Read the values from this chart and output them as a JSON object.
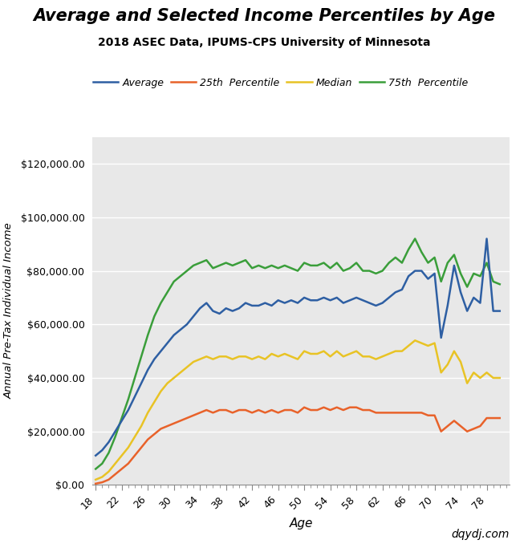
{
  "title": "Average and Selected Income Percentiles by Age",
  "subtitle": "2018 ASEC Data, IPUMS-CPS University of Minnesota",
  "xlabel": "Age",
  "ylabel": "Annual Pre-Tax Individual Income",
  "watermark": "dqydj.com",
  "fig_bg": "#ffffff",
  "plot_bg": "#e8e8e8",
  "line_colors": {
    "average": "#2e5fa3",
    "p25": "#e8622a",
    "median": "#e8c325",
    "p75": "#3a9e3a"
  },
  "legend_labels": [
    "Average",
    "25th  Percentile",
    "Median",
    "75th  Percentile"
  ],
  "ylim": [
    0,
    130000
  ],
  "yticks": [
    0,
    20000,
    40000,
    60000,
    80000,
    100000,
    120000
  ],
  "xticks": [
    18,
    22,
    26,
    30,
    34,
    38,
    42,
    46,
    50,
    54,
    58,
    62,
    66,
    70,
    74,
    78
  ],
  "ages": [
    18,
    19,
    20,
    21,
    22,
    23,
    24,
    25,
    26,
    27,
    28,
    29,
    30,
    31,
    32,
    33,
    34,
    35,
    36,
    37,
    38,
    39,
    40,
    41,
    42,
    43,
    44,
    45,
    46,
    47,
    48,
    49,
    50,
    51,
    52,
    53,
    54,
    55,
    56,
    57,
    58,
    59,
    60,
    61,
    62,
    63,
    64,
    65,
    66,
    67,
    68,
    69,
    70,
    71,
    72,
    73,
    74,
    75,
    76,
    77,
    78,
    79,
    80
  ],
  "average": [
    11000,
    13000,
    16000,
    20000,
    24000,
    28000,
    33000,
    38000,
    43000,
    47000,
    50000,
    53000,
    56000,
    58000,
    60000,
    63000,
    66000,
    68000,
    65000,
    64000,
    66000,
    65000,
    66000,
    68000,
    67000,
    67000,
    68000,
    67000,
    69000,
    68000,
    69000,
    68000,
    70000,
    69000,
    69000,
    70000,
    69000,
    70000,
    68000,
    69000,
    70000,
    69000,
    68000,
    67000,
    68000,
    70000,
    72000,
    73000,
    78000,
    80000,
    80000,
    77000,
    79000,
    55000,
    67000,
    82000,
    72000,
    65000,
    70000,
    68000,
    92000,
    65000,
    65000
  ],
  "p25": [
    500,
    1000,
    2000,
    4000,
    6000,
    8000,
    11000,
    14000,
    17000,
    19000,
    21000,
    22000,
    23000,
    24000,
    25000,
    26000,
    27000,
    28000,
    27000,
    28000,
    28000,
    27000,
    28000,
    28000,
    27000,
    28000,
    27000,
    28000,
    27000,
    28000,
    28000,
    27000,
    29000,
    28000,
    28000,
    29000,
    28000,
    29000,
    28000,
    29000,
    29000,
    28000,
    28000,
    27000,
    27000,
    27000,
    27000,
    27000,
    27000,
    27000,
    27000,
    26000,
    26000,
    20000,
    22000,
    24000,
    22000,
    20000,
    21000,
    22000,
    25000,
    25000,
    25000
  ],
  "median": [
    2000,
    3000,
    5000,
    8000,
    11000,
    14000,
    18000,
    22000,
    27000,
    31000,
    35000,
    38000,
    40000,
    42000,
    44000,
    46000,
    47000,
    48000,
    47000,
    48000,
    48000,
    47000,
    48000,
    48000,
    47000,
    48000,
    47000,
    49000,
    48000,
    49000,
    48000,
    47000,
    50000,
    49000,
    49000,
    50000,
    48000,
    50000,
    48000,
    49000,
    50000,
    48000,
    48000,
    47000,
    48000,
    49000,
    50000,
    50000,
    52000,
    54000,
    53000,
    52000,
    53000,
    42000,
    45000,
    50000,
    46000,
    38000,
    42000,
    40000,
    42000,
    40000,
    40000
  ],
  "p75": [
    6000,
    8000,
    12000,
    18000,
    25000,
    32000,
    40000,
    48000,
    56000,
    63000,
    68000,
    72000,
    76000,
    78000,
    80000,
    82000,
    83000,
    84000,
    81000,
    82000,
    83000,
    82000,
    83000,
    84000,
    81000,
    82000,
    81000,
    82000,
    81000,
    82000,
    81000,
    80000,
    83000,
    82000,
    82000,
    83000,
    81000,
    83000,
    80000,
    81000,
    83000,
    80000,
    80000,
    79000,
    80000,
    83000,
    85000,
    83000,
    88000,
    92000,
    87000,
    83000,
    85000,
    76000,
    83000,
    86000,
    79000,
    74000,
    79000,
    78000,
    83000,
    76000,
    75000
  ]
}
